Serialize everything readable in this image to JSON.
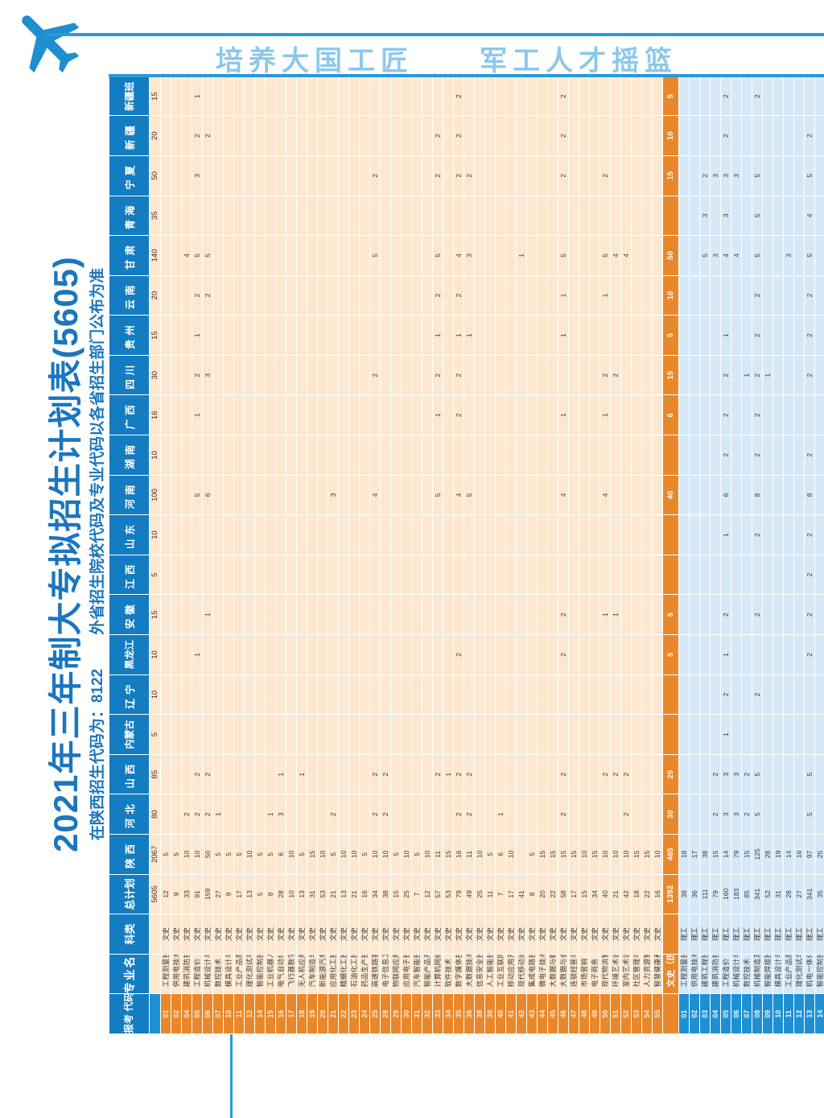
{
  "banner": {
    "slogan": "培养大国工匠　　军工人才摇篮"
  },
  "doc": {
    "title": "2021年三年制大专拟招生计划表(5605)",
    "subtitle_left": "在陕西招生代码为：8122",
    "subtitle_right": "外省招生院校代码及专业代码以各省招生部门公布为准"
  },
  "colors": {
    "accent_line": "#2B99D8",
    "title_color": "#1B76BE",
    "slogan_color": "#8CC8EB",
    "header_bg": "#147CC0",
    "wenshi_bg": "#FCE8D0",
    "wenshi_code_bg": "#E8882B",
    "subtotal_bg": "#E8882B",
    "ligong_bg": "#D7E9F7",
    "ligong_code_bg": "#1E90D2"
  },
  "table": {
    "col_headers": [
      "报考\n代码",
      "专业名称",
      "科类",
      "总计划"
    ],
    "provinces": [
      "陕西",
      "河北",
      "山西",
      "内蒙古",
      "辽宁",
      "黑龙江",
      "安徽",
      "江西",
      "山东",
      "河南",
      "湖南",
      "广西",
      "四川",
      "贵州",
      "云南",
      "甘肃",
      "青海",
      "宁夏",
      "新疆",
      "新疆班"
    ],
    "totals_row": {
      "total": "5605",
      "v": {
        "0": "2067",
        "1": "80",
        "2": "85",
        "3": "5",
        "4": "10",
        "5": "10",
        "6": "15",
        "7": "5",
        "8": "10",
        "9": "100",
        "10": "10",
        "11": "16",
        "12": "30",
        "13": "15",
        "14": "20",
        "15": "140",
        "16": "35",
        "17": "50",
        "18": "20",
        "19": "15"
      }
    },
    "wenshi_rows": [
      {
        "code": "01",
        "name": "工程测量技术",
        "cat": "文史",
        "total": "12",
        "v": {
          "0": "5"
        }
      },
      {
        "code": "02",
        "name": "供用电技术",
        "cat": "文史",
        "total": "9",
        "v": {
          "0": "5"
        }
      },
      {
        "code": "04",
        "name": "建筑消防技术",
        "cat": "文史",
        "total": "33",
        "v": {
          "0": "10",
          "1": "2",
          "15": "4"
        }
      },
      {
        "code": "05",
        "name": "工程造价",
        "cat": "文史",
        "total": "91",
        "v": {
          "0": "10",
          "1": "2",
          "2": "2",
          "5": "1",
          "9": "5",
          "11": "1",
          "12": "2",
          "13": "1",
          "14": "2",
          "15": "5",
          "17": "3",
          "18": "2",
          "19": "1"
        }
      },
      {
        "code": "06",
        "name": "机械设计与制造",
        "cat": "文史",
        "total": "159",
        "v": {
          "0": "50",
          "1": "2",
          "2": "2",
          "6": "1",
          "9": "6",
          "12": "3",
          "14": "2",
          "15": "5",
          "18": "2"
        }
      },
      {
        "code": "07",
        "name": "数控技术",
        "cat": "文史",
        "total": "27",
        "v": {
          "0": "5",
          "1": "1"
        }
      },
      {
        "code": "10",
        "name": "模具设计与制造",
        "cat": "文史",
        "total": "9",
        "v": {
          "0": "5"
        }
      },
      {
        "code": "11",
        "name": "工业产品质量检测技术",
        "cat": "文史",
        "total": "17",
        "v": {
          "0": "5"
        }
      },
      {
        "code": "12",
        "name": "理化测试与质检技术",
        "cat": "文史",
        "total": "13",
        "v": {
          "0": "10"
        }
      },
      {
        "code": "14",
        "name": "智能控制技术",
        "cat": "文史",
        "total": "5",
        "v": {
          "0": "5"
        }
      },
      {
        "code": "15",
        "name": "工业机器人技术",
        "cat": "文史",
        "total": "8",
        "v": {
          "0": "5",
          "1": "1"
        }
      },
      {
        "code": "16",
        "name": "电气自动化技术",
        "cat": "文史",
        "total": "28",
        "v": {
          "0": "6",
          "1": "3",
          "2": "1"
        }
      },
      {
        "code": "17",
        "name": "飞行器数字化制造技术",
        "cat": "文史",
        "total": "10",
        "v": {
          "0": "10"
        }
      },
      {
        "code": "18",
        "name": "无人机应用技术",
        "cat": "文史",
        "total": "13",
        "v": {
          "0": "5",
          "2": "1"
        }
      },
      {
        "code": "19",
        "name": "汽车制造与试验技术",
        "cat": "文史",
        "total": "31",
        "v": {
          "0": "15"
        }
      },
      {
        "code": "20",
        "name": "新能源汽车技术",
        "cat": "文史",
        "total": "53",
        "v": {
          "0": "10"
        }
      },
      {
        "code": "21",
        "name": "应用化工技术",
        "cat": "文史",
        "total": "21",
        "v": {
          "0": "5",
          "1": "2",
          "9": "3"
        }
      },
      {
        "code": "22",
        "name": "精细化工技术",
        "cat": "文史",
        "total": "13",
        "v": {
          "0": "10"
        }
      },
      {
        "code": "23",
        "name": "石油化工技术",
        "cat": "文史",
        "total": "21",
        "v": {
          "0": "10"
        }
      },
      {
        "code": "24",
        "name": "药品生产技术",
        "cat": "文史",
        "total": "16",
        "v": {
          "0": "5"
        }
      },
      {
        "code": "25",
        "name": "高速铁路客运服务",
        "cat": "文史",
        "total": "34",
        "v": {
          "0": "10",
          "1": "2",
          "2": "2",
          "9": "4",
          "12": "2",
          "15": "5",
          "17": "2"
        }
      },
      {
        "code": "28",
        "name": "电子信息工程技术",
        "cat": "文史",
        "total": "38",
        "v": {
          "0": "10",
          "1": "2",
          "2": "2"
        }
      },
      {
        "code": "29",
        "name": "物联网应用技术",
        "cat": "文史",
        "total": "15",
        "v": {
          "0": "5"
        }
      },
      {
        "code": "30",
        "name": "应用电子技术",
        "cat": "文史",
        "total": "25",
        "v": {
          "0": "10"
        }
      },
      {
        "code": "31",
        "name": "汽车智能技术",
        "cat": "文史",
        "total": "7",
        "v": {
          "0": "5"
        }
      },
      {
        "code": "32",
        "name": "智能产品开发与应用",
        "cat": "文史",
        "total": "12",
        "v": {
          "0": "10"
        }
      },
      {
        "code": "33",
        "name": "计算机网络技术",
        "cat": "文史",
        "total": "57",
        "v": {
          "0": "11",
          "2": "2",
          "9": "5",
          "11": "1",
          "12": "2",
          "13": "1",
          "14": "2",
          "15": "5",
          "17": "2",
          "18": "2"
        }
      },
      {
        "code": "34",
        "name": "软件技术",
        "cat": "文史",
        "total": "53",
        "v": {
          "0": "15",
          "2": "1"
        }
      },
      {
        "code": "35",
        "name": "数字媒体技术",
        "cat": "文史",
        "total": "79",
        "v": {
          "0": "16",
          "1": "2",
          "2": "2",
          "5": "2",
          "9": "4",
          "11": "2",
          "12": "2",
          "13": "1",
          "14": "2",
          "15": "4",
          "17": "2",
          "18": "2",
          "19": "2"
        }
      },
      {
        "code": "36",
        "name": "大数据技术",
        "cat": "文史",
        "total": "49",
        "v": {
          "0": "11",
          "1": "2",
          "2": "2",
          "9": "5",
          "13": "1",
          "15": "3",
          "17": "2"
        }
      },
      {
        "code": "38",
        "name": "信息安全技术应用",
        "cat": "文史",
        "total": "25",
        "v": {
          "0": "10"
        }
      },
      {
        "code": "39",
        "name": "人工智能技术应用",
        "cat": "文史",
        "total": "11",
        "v": {
          "0": "5"
        }
      },
      {
        "code": "40",
        "name": "工业互联网技术",
        "cat": "文史",
        "total": "7",
        "v": {
          "0": "6",
          "1": "1"
        }
      },
      {
        "code": "41",
        "name": "移动应用开发",
        "cat": "文史",
        "total": "17",
        "v": {
          "0": "10"
        }
      },
      {
        "code": "42",
        "name": "现代移动通信技术",
        "cat": "文史",
        "total": "41",
        "v": {
          "15": "1"
        }
      },
      {
        "code": "43",
        "name": "集成电路技术",
        "cat": "文史",
        "total": "8",
        "v": {
          "0": "5"
        }
      },
      {
        "code": "44",
        "name": "微电子技术",
        "cat": "文史",
        "total": "20",
        "v": {
          "0": "15"
        }
      },
      {
        "code": "45",
        "name": "大数据与财务管理",
        "cat": "文史",
        "total": "22",
        "v": {
          "0": "15"
        }
      },
      {
        "code": "46",
        "name": "大数据与会计",
        "cat": "文史",
        "total": "58",
        "v": {
          "0": "15",
          "1": "2",
          "2": "2",
          "5": "2",
          "6": "2",
          "9": "4",
          "11": "1",
          "13": "1",
          "14": "1",
          "15": "5",
          "17": "2",
          "18": "2",
          "19": "2"
        }
      },
      {
        "code": "47",
        "name": "连锁经营与管理",
        "cat": "文史",
        "total": "17",
        "v": {
          "0": "15"
        }
      },
      {
        "code": "48",
        "name": "市场营销",
        "cat": "文史",
        "total": "15",
        "v": {
          "0": "10"
        }
      },
      {
        "code": "49",
        "name": "电子商务",
        "cat": "文史",
        "total": "34",
        "v": {
          "0": "15"
        }
      },
      {
        "code": "50",
        "name": "现代物流管理",
        "cat": "文史",
        "total": "40",
        "v": {
          "0": "10",
          "2": "2",
          "6": "1",
          "9": "4",
          "11": "1",
          "12": "2",
          "14": "1",
          "15": "5",
          "17": "2"
        }
      },
      {
        "code": "51",
        "name": "环境艺术设计",
        "cat": "文史",
        "total": "21",
        "v": {
          "0": "10",
          "2": "2",
          "6": "1",
          "12": "2",
          "15": "4"
        }
      },
      {
        "code": "52",
        "name": "室内艺术设计",
        "cat": "文史",
        "total": "42",
        "v": {
          "0": "10",
          "1": "2",
          "2": "2",
          "15": "4"
        }
      },
      {
        "code": "53",
        "name": "社区管理与服务",
        "cat": "文史",
        "total": "18",
        "v": {
          "0": "15"
        }
      },
      {
        "code": "54",
        "name": "人力资源管理",
        "cat": "文史",
        "total": "22",
        "v": {
          "0": "15"
        }
      },
      {
        "code": "55",
        "name": "智慧健康养老服务与管理",
        "cat": "文史",
        "total": "16",
        "v": {
          "0": "10"
        }
      }
    ],
    "subtotal_row": {
      "name": "文史（历史类）小计",
      "total": "1392",
      "v": {
        "0": "485",
        "1": "30",
        "2": "25",
        "5": "5",
        "6": "5",
        "9": "40",
        "11": "6",
        "12": "15",
        "13": "5",
        "14": "10",
        "15": "50",
        "17": "15",
        "18": "10",
        "19": "5"
      }
    },
    "ligong_rows": [
      {
        "code": "01",
        "name": "工程测量技术",
        "cat": "理工",
        "total": "38",
        "v": {
          "0": "18"
        }
      },
      {
        "code": "02",
        "name": "供用电技术",
        "cat": "理工",
        "total": "36",
        "v": {
          "0": "17"
        }
      },
      {
        "code": "03",
        "name": "建筑工程技术",
        "cat": "理工",
        "total": "111",
        "v": {
          "0": "38",
          "15": "5",
          "16": "3",
          "17": "2"
        }
      },
      {
        "code": "04",
        "name": "建筑消防技术",
        "cat": "理工",
        "total": "79",
        "v": {
          "0": "15",
          "1": "2",
          "2": "2",
          "15": "3",
          "17": "3"
        }
      },
      {
        "code": "05",
        "name": "工程造价",
        "cat": "理工",
        "total": "160",
        "v": {
          "0": "14",
          "1": "3",
          "2": "3",
          "3": "1",
          "4": "2",
          "5": "1",
          "6": "2",
          "8": "1",
          "9": "6",
          "10": "2",
          "11": "2",
          "12": "2",
          "13": "1",
          "15": "4",
          "16": "3",
          "17": "3",
          "18": "2",
          "19": "2"
        }
      },
      {
        "code": "06",
        "name": "机械设计与制造",
        "cat": "理工",
        "total": "183",
        "v": {
          "0": "79",
          "1": "3",
          "2": "3",
          "15": "4",
          "17": "3"
        }
      },
      {
        "code": "07",
        "name": "数控技术",
        "cat": "理工",
        "total": "85",
        "v": {
          "0": "15",
          "1": "2",
          "2": "2",
          "12": "1"
        }
      },
      {
        "code": "08",
        "name": "机械制造及自动化",
        "cat": "理工",
        "total": "341",
        "v": {
          "0": "125",
          "1": "5",
          "2": "5",
          "4": "2",
          "6": "2",
          "8": "2",
          "9": "8",
          "10": "2",
          "11": "2",
          "12": "2",
          "13": "2",
          "14": "2",
          "15": "5",
          "16": "5",
          "17": "5",
          "19": "2"
        }
      },
      {
        "code": "09",
        "name": "智能焊接技术",
        "cat": "理工",
        "total": "52",
        "v": {
          "0": "28",
          "12": "1"
        }
      },
      {
        "code": "10",
        "name": "模具设计与制造",
        "cat": "理工",
        "total": "31",
        "v": {
          "0": "19"
        }
      },
      {
        "code": "11",
        "name": "工业产品质量检测技术",
        "cat": "理工",
        "total": "28",
        "v": {
          "0": "14",
          "15": "3"
        }
      },
      {
        "code": "12",
        "name": "理化测试与质检技术",
        "cat": "理工",
        "total": "27",
        "v": {
          "0": "16"
        }
      },
      {
        "code": "13",
        "name": "机电一体化技术",
        "cat": "理工",
        "total": "341",
        "v": {
          "0": "97",
          "1": "5",
          "2": "5",
          "5": "2",
          "6": "2",
          "7": "2",
          "8": "2",
          "9": "8",
          "10": "2",
          "12": "2",
          "13": "2",
          "14": "2",
          "15": "5",
          "16": "4",
          "17": "5",
          "18": "2"
        }
      },
      {
        "code": "14",
        "name": "智能控制技术",
        "cat": "理工",
        "total": "35",
        "v": {
          "0": "25"
        }
      }
    ],
    "empty_row_count": 7
  }
}
